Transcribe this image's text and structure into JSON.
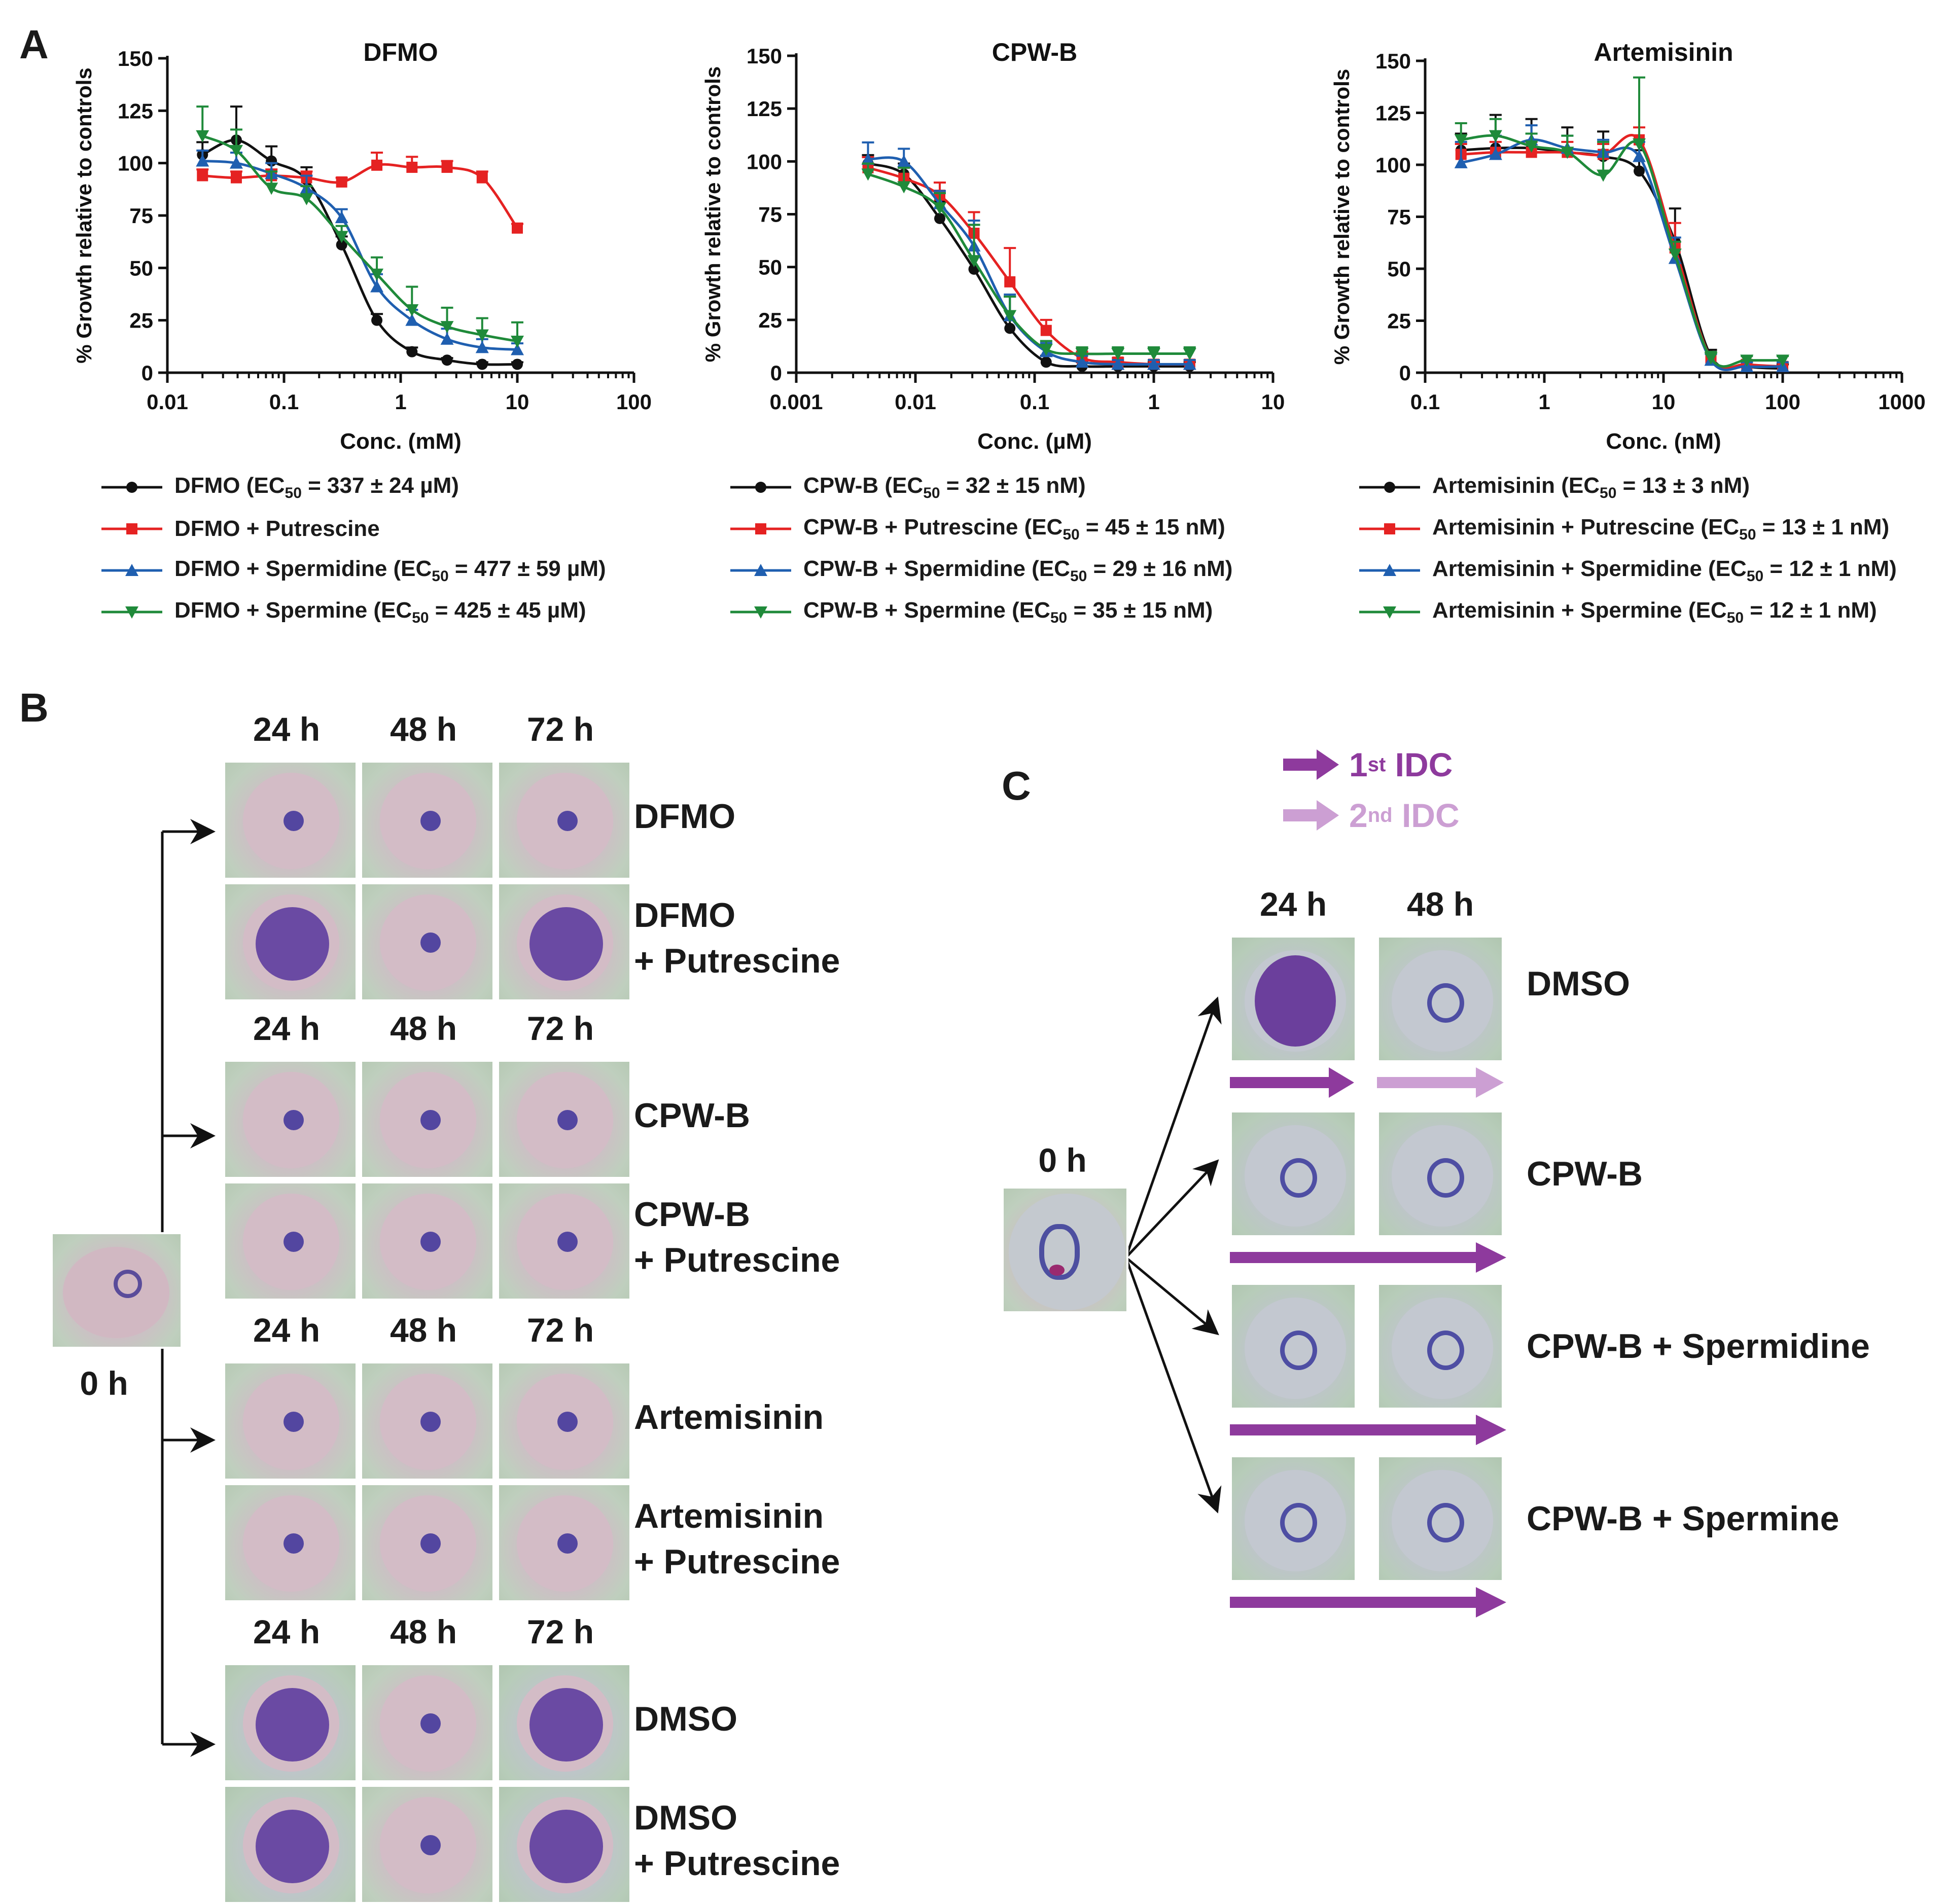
{
  "panel_labels": {
    "a": "A",
    "b": "B",
    "c": "C"
  },
  "chart_data": [
    {
      "type": "line",
      "title": "DFMO",
      "xlabel": "Conc. (mM)",
      "ylabel": "% Growth relative to controls",
      "xscale": "log",
      "xlim": [
        0.01,
        100
      ],
      "ylim": [
        0,
        150
      ],
      "x_ticks": [
        "0.01",
        "0.1",
        "1",
        "10",
        "100"
      ],
      "y_ticks": [
        "0",
        "25",
        "50",
        "75",
        "100",
        "125",
        "150"
      ],
      "series": [
        {
          "name": "DFMO",
          "legend": "DFMO (EC50 = 337 ± 24 µM)",
          "label_main": "DFMO (EC",
          "label_sub": "50",
          "label_tail": " = 337 ± 24 µM)",
          "color": "#111111",
          "marker": "circle",
          "x": [
            0.02,
            0.039,
            0.078,
            0.156,
            0.312,
            0.625,
            1.25,
            2.5,
            5,
            10
          ],
          "y": [
            104,
            111,
            101,
            92,
            61,
            25,
            10,
            6,
            4,
            4
          ],
          "err": [
            6,
            16,
            7,
            6,
            4,
            3,
            2,
            1,
            1,
            1
          ]
        },
        {
          "name": "DFMO + Putrescine",
          "legend": "DFMO + Putrescine",
          "label_main": "DFMO + Putrescine",
          "label_sub": "",
          "label_tail": "",
          "color": "#e52222",
          "marker": "square",
          "x": [
            0.02,
            0.039,
            0.078,
            0.156,
            0.312,
            0.625,
            1.25,
            2.5,
            5,
            10
          ],
          "y": [
            94,
            93,
            94,
            93,
            91,
            99,
            98,
            98,
            93,
            69
          ],
          "err": [
            3,
            3,
            3,
            3,
            2,
            6,
            5,
            3,
            3,
            2
          ]
        },
        {
          "name": "DFMO + Spermidine",
          "legend": "DFMO + Spermidine (EC50 = 477 ± 59 µM)",
          "label_main": "DFMO + Spermidine (EC",
          "label_sub": "50",
          "label_tail": " = 477 ± 59 µM)",
          "color": "#1f5fb0",
          "marker": "triangle",
          "x": [
            0.02,
            0.039,
            0.078,
            0.156,
            0.312,
            0.625,
            1.25,
            2.5,
            5,
            10
          ],
          "y": [
            101,
            100,
            95,
            88,
            74,
            41,
            25,
            16,
            12,
            11
          ],
          "err": [
            5,
            5,
            5,
            6,
            4,
            6,
            5,
            5,
            4,
            3
          ]
        },
        {
          "name": "DFMO + Spermine",
          "legend": "DFMO + Spermine (EC50 = 425 ± 45 µM)",
          "label_main": "DFMO + Spermine (EC",
          "label_sub": "50",
          "label_tail": " = 425 ± 45 µM)",
          "color": "#1f8a3a",
          "marker": "triangle-down",
          "x": [
            0.02,
            0.039,
            0.078,
            0.156,
            0.312,
            0.625,
            1.25,
            2.5,
            5,
            10
          ],
          "y": [
            113,
            106,
            88,
            83,
            65,
            47,
            30,
            22,
            18,
            15
          ],
          "err": [
            14,
            10,
            8,
            6,
            5,
            8,
            11,
            9,
            8,
            9
          ]
        }
      ]
    },
    {
      "type": "line",
      "title": "CPW-B",
      "xlabel": "Conc. (µM)",
      "ylabel": "% Growth relative to controls",
      "xscale": "log",
      "xlim": [
        0.001,
        10
      ],
      "ylim": [
        0,
        150
      ],
      "x_ticks": [
        "0.001",
        "0.01",
        "0.1",
        "1",
        "10"
      ],
      "y_ticks": [
        "0",
        "25",
        "50",
        "75",
        "100",
        "125",
        "150"
      ],
      "series": [
        {
          "name": "CPW-B",
          "legend": "CPW-B (EC50 = 32 ± 15 nM)",
          "label_main": "CPW-B (EC",
          "label_sub": "50",
          "label_tail": " = 32 ± 15 nM)",
          "color": "#111111",
          "marker": "circle",
          "x": [
            0.004,
            0.008,
            0.016,
            0.031,
            0.062,
            0.125,
            0.25,
            0.5,
            1,
            2
          ],
          "y": [
            99,
            94,
            73,
            49,
            21,
            5,
            3,
            3,
            3,
            3
          ],
          "err": [
            4,
            5,
            8,
            21,
            15,
            3,
            2,
            2,
            2,
            2
          ]
        },
        {
          "name": "CPW-B + Putrescine",
          "legend": "CPW-B + Putrescine (EC50 = 45 ± 15 nM)",
          "label_main": "CPW-B + Putrescine (EC",
          "label_sub": "50",
          "label_tail": " = 45 ± 15 nM)",
          "color": "#e52222",
          "marker": "square",
          "x": [
            0.004,
            0.008,
            0.016,
            0.031,
            0.062,
            0.125,
            0.25,
            0.5,
            1,
            2
          ],
          "y": [
            97,
            92,
            84,
            66,
            43,
            20,
            7,
            5,
            4,
            4
          ],
          "err": [
            5,
            5,
            6,
            10,
            16,
            5,
            3,
            2,
            2,
            2
          ]
        },
        {
          "name": "CPW-B + Spermidine",
          "legend": "CPW-B + Spermidine (EC50 = 29 ± 16 nM)",
          "label_main": "CPW-B + Spermidine (EC",
          "label_sub": "50",
          "label_tail": " = 29 ± 16 nM)",
          "color": "#1f5fb0",
          "marker": "triangle",
          "x": [
            0.004,
            0.008,
            0.016,
            0.031,
            0.062,
            0.125,
            0.25,
            0.5,
            1,
            2
          ],
          "y": [
            101,
            100,
            80,
            60,
            27,
            10,
            5,
            4,
            4,
            4
          ],
          "err": [
            8,
            6,
            6,
            12,
            10,
            4,
            3,
            2,
            2,
            2
          ]
        },
        {
          "name": "CPW-B + Spermine",
          "legend": "CPW-B + Spermine (EC50 = 35 ± 15 nM)",
          "label_main": "CPW-B + Spermine (EC",
          "label_sub": "50",
          "label_tail": " = 35 ± 15 nM)",
          "color": "#1f8a3a",
          "marker": "triangle-down",
          "x": [
            0.004,
            0.008,
            0.016,
            0.031,
            0.062,
            0.125,
            0.25,
            0.5,
            1,
            2
          ],
          "y": [
            94,
            88,
            78,
            53,
            27,
            11,
            9,
            9,
            9,
            9
          ],
          "err": [
            5,
            9,
            7,
            17,
            9,
            4,
            3,
            3,
            3,
            3
          ]
        }
      ]
    },
    {
      "type": "line",
      "title": "Artemisinin",
      "xlabel": "Conc. (nM)",
      "ylabel": "% Growth relative to controls",
      "xscale": "log",
      "xlim": [
        0.1,
        1000
      ],
      "ylim": [
        0,
        150
      ],
      "x_ticks": [
        "0.1",
        "1",
        "10",
        "100",
        "1000"
      ],
      "y_ticks": [
        "0",
        "25",
        "50",
        "75",
        "100",
        "125",
        "150"
      ],
      "series": [
        {
          "name": "Artemisinin",
          "legend": "Artemisinin (EC50 = 13 ± 3 nM)",
          "label_main": "Artemisinin (EC",
          "label_sub": "50",
          "label_tail": " = 13 ± 3 nM)",
          "color": "#111111",
          "marker": "circle",
          "x": [
            0.2,
            0.39,
            0.78,
            1.56,
            3.12,
            6.25,
            12.5,
            25,
            50,
            100
          ],
          "y": [
            107,
            108,
            108,
            106,
            104,
            97,
            63,
            8,
            3,
            2
          ],
          "err": [
            8,
            16,
            14,
            12,
            12,
            10,
            16,
            3,
            2,
            2
          ]
        },
        {
          "name": "Artemisinin + Putrescine",
          "legend": "Artemisinin + Putrescine (EC50 = 13 ± 1 nM)",
          "label_main": "Artemisinin + Putrescine (EC",
          "label_sub": "50",
          "label_tail": " = 13 ± 1 nM)",
          "color": "#e52222",
          "marker": "square",
          "x": [
            0.2,
            0.39,
            0.78,
            1.56,
            3.12,
            6.25,
            12.5,
            25,
            50,
            100
          ],
          "y": [
            105,
            106,
            106,
            106,
            105,
            112,
            60,
            7,
            4,
            3
          ],
          "err": [
            5,
            5,
            5,
            5,
            5,
            6,
            12,
            3,
            2,
            2
          ]
        },
        {
          "name": "Artemisinin + Spermidine",
          "legend": "Artemisinin + Spermidine (EC50 = 12 ± 1 nM)",
          "label_main": "Artemisinin + Spermidine (EC",
          "label_sub": "50",
          "label_tail": " = 12 ± 1 nM)",
          "color": "#1f5fb0",
          "marker": "triangle",
          "x": [
            0.2,
            0.39,
            0.78,
            1.56,
            3.12,
            6.25,
            12.5,
            25,
            50,
            100
          ],
          "y": [
            101,
            105,
            112,
            108,
            106,
            104,
            55,
            6,
            3,
            3
          ],
          "err": [
            10,
            9,
            7,
            6,
            6,
            7,
            10,
            3,
            2,
            2
          ]
        },
        {
          "name": "Artemisinin + Spermine",
          "legend": "Artemisinin + Spermine (EC50 = 12 ± 1 nM)",
          "label_main": "Artemisinin + Spermine (EC",
          "label_sub": "50",
          "label_tail": " = 12 ± 1 nM)",
          "color": "#1f8a3a",
          "marker": "triangle-down",
          "x": [
            0.2,
            0.39,
            0.78,
            1.56,
            3.12,
            6.25,
            12.5,
            25,
            50,
            100
          ],
          "y": [
            112,
            114,
            109,
            106,
            95,
            110,
            57,
            7,
            6,
            6
          ],
          "err": [
            8,
            8,
            6,
            8,
            16,
            32,
            6,
            3,
            2,
            2
          ]
        }
      ]
    }
  ],
  "panel_b": {
    "origin_time": "0 h",
    "times": [
      "24 h",
      "48 h",
      "72 h"
    ],
    "groups": [
      {
        "conditions": [
          "DFMO",
          "DFMO\n+ Putrescine"
        ]
      },
      {
        "conditions": [
          "CPW-B",
          "CPW-B\n+ Putrescine"
        ]
      },
      {
        "conditions": [
          "Artemisinin",
          "Artemisinin\n+ Putrescine"
        ]
      },
      {
        "conditions": [
          "DMSO",
          "DMSO\n+ Putrescine"
        ]
      }
    ]
  },
  "panel_c": {
    "legend": {
      "first": {
        "sup": "st",
        "num": "1",
        "label": "IDC",
        "color": "#8e3a9d"
      },
      "second": {
        "sup": "nd",
        "num": "2",
        "label": "IDC",
        "color": "#cc9fd3"
      }
    },
    "origin_time": "0 h",
    "times": [
      "24 h",
      "48 h"
    ],
    "conditions": [
      "DMSO",
      "CPW-B",
      "CPW-B + Spermidine",
      "CPW-B + Spermine"
    ]
  }
}
